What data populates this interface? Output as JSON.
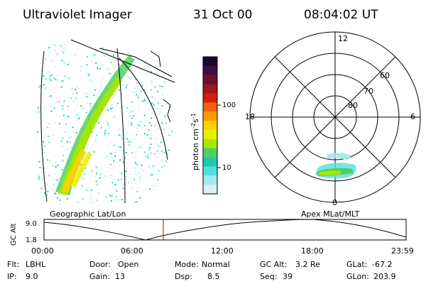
{
  "header": {
    "instrument": "Ultraviolet Imager",
    "date": "31 Oct 00",
    "time": "08:04:02 UT"
  },
  "colorbar": {
    "unit_label": "photon cm",
    "unit_exp": "-2",
    "unit_s": "s",
    "unit_s_exp": "-1",
    "ticks": [
      "100",
      "10"
    ],
    "colors": [
      "#1a0a2a",
      "#3d1040",
      "#6a1030",
      "#a01820",
      "#d02010",
      "#f06010",
      "#ff9a00",
      "#ffd000",
      "#e8f000",
      "#a8e800",
      "#50d060",
      "#20c8b0",
      "#50e0e0",
      "#a0eaea",
      "#d8f2f2"
    ]
  },
  "geo_panel": {
    "caption": "Geographic Lat/Lon"
  },
  "polar_panel": {
    "caption": "Apex MLat/MLT",
    "mlt_labels": {
      "top": "12",
      "left": "18",
      "right": "6",
      "bottom": "0"
    },
    "lat_labels": [
      "60",
      "70",
      "80"
    ]
  },
  "altitude_plot": {
    "axis_label": "GC Alt",
    "y_ticks": [
      "9.0",
      "1.8"
    ],
    "x_ticks": [
      "00:00",
      "06:00",
      "12:00",
      "18:00",
      "23:59"
    ]
  },
  "info": {
    "row1": [
      {
        "key": "Flt:",
        "value": "LBHL"
      },
      {
        "key": "Door:",
        "value": "Open"
      },
      {
        "key": "Mode:",
        "value": "Normal"
      },
      {
        "key": "GC Alt:",
        "value": "3.2 Re"
      },
      {
        "key": "GLat:",
        "value": "-67.2"
      }
    ],
    "row2": [
      {
        "key": "IP:",
        "value": "9.0"
      },
      {
        "key": "Gain:",
        "value": "13"
      },
      {
        "key": "Dsp:",
        "value": "8.5"
      },
      {
        "key": "Seq:",
        "value": "39"
      },
      {
        "key": "GLon:",
        "value": "203.9"
      }
    ]
  }
}
